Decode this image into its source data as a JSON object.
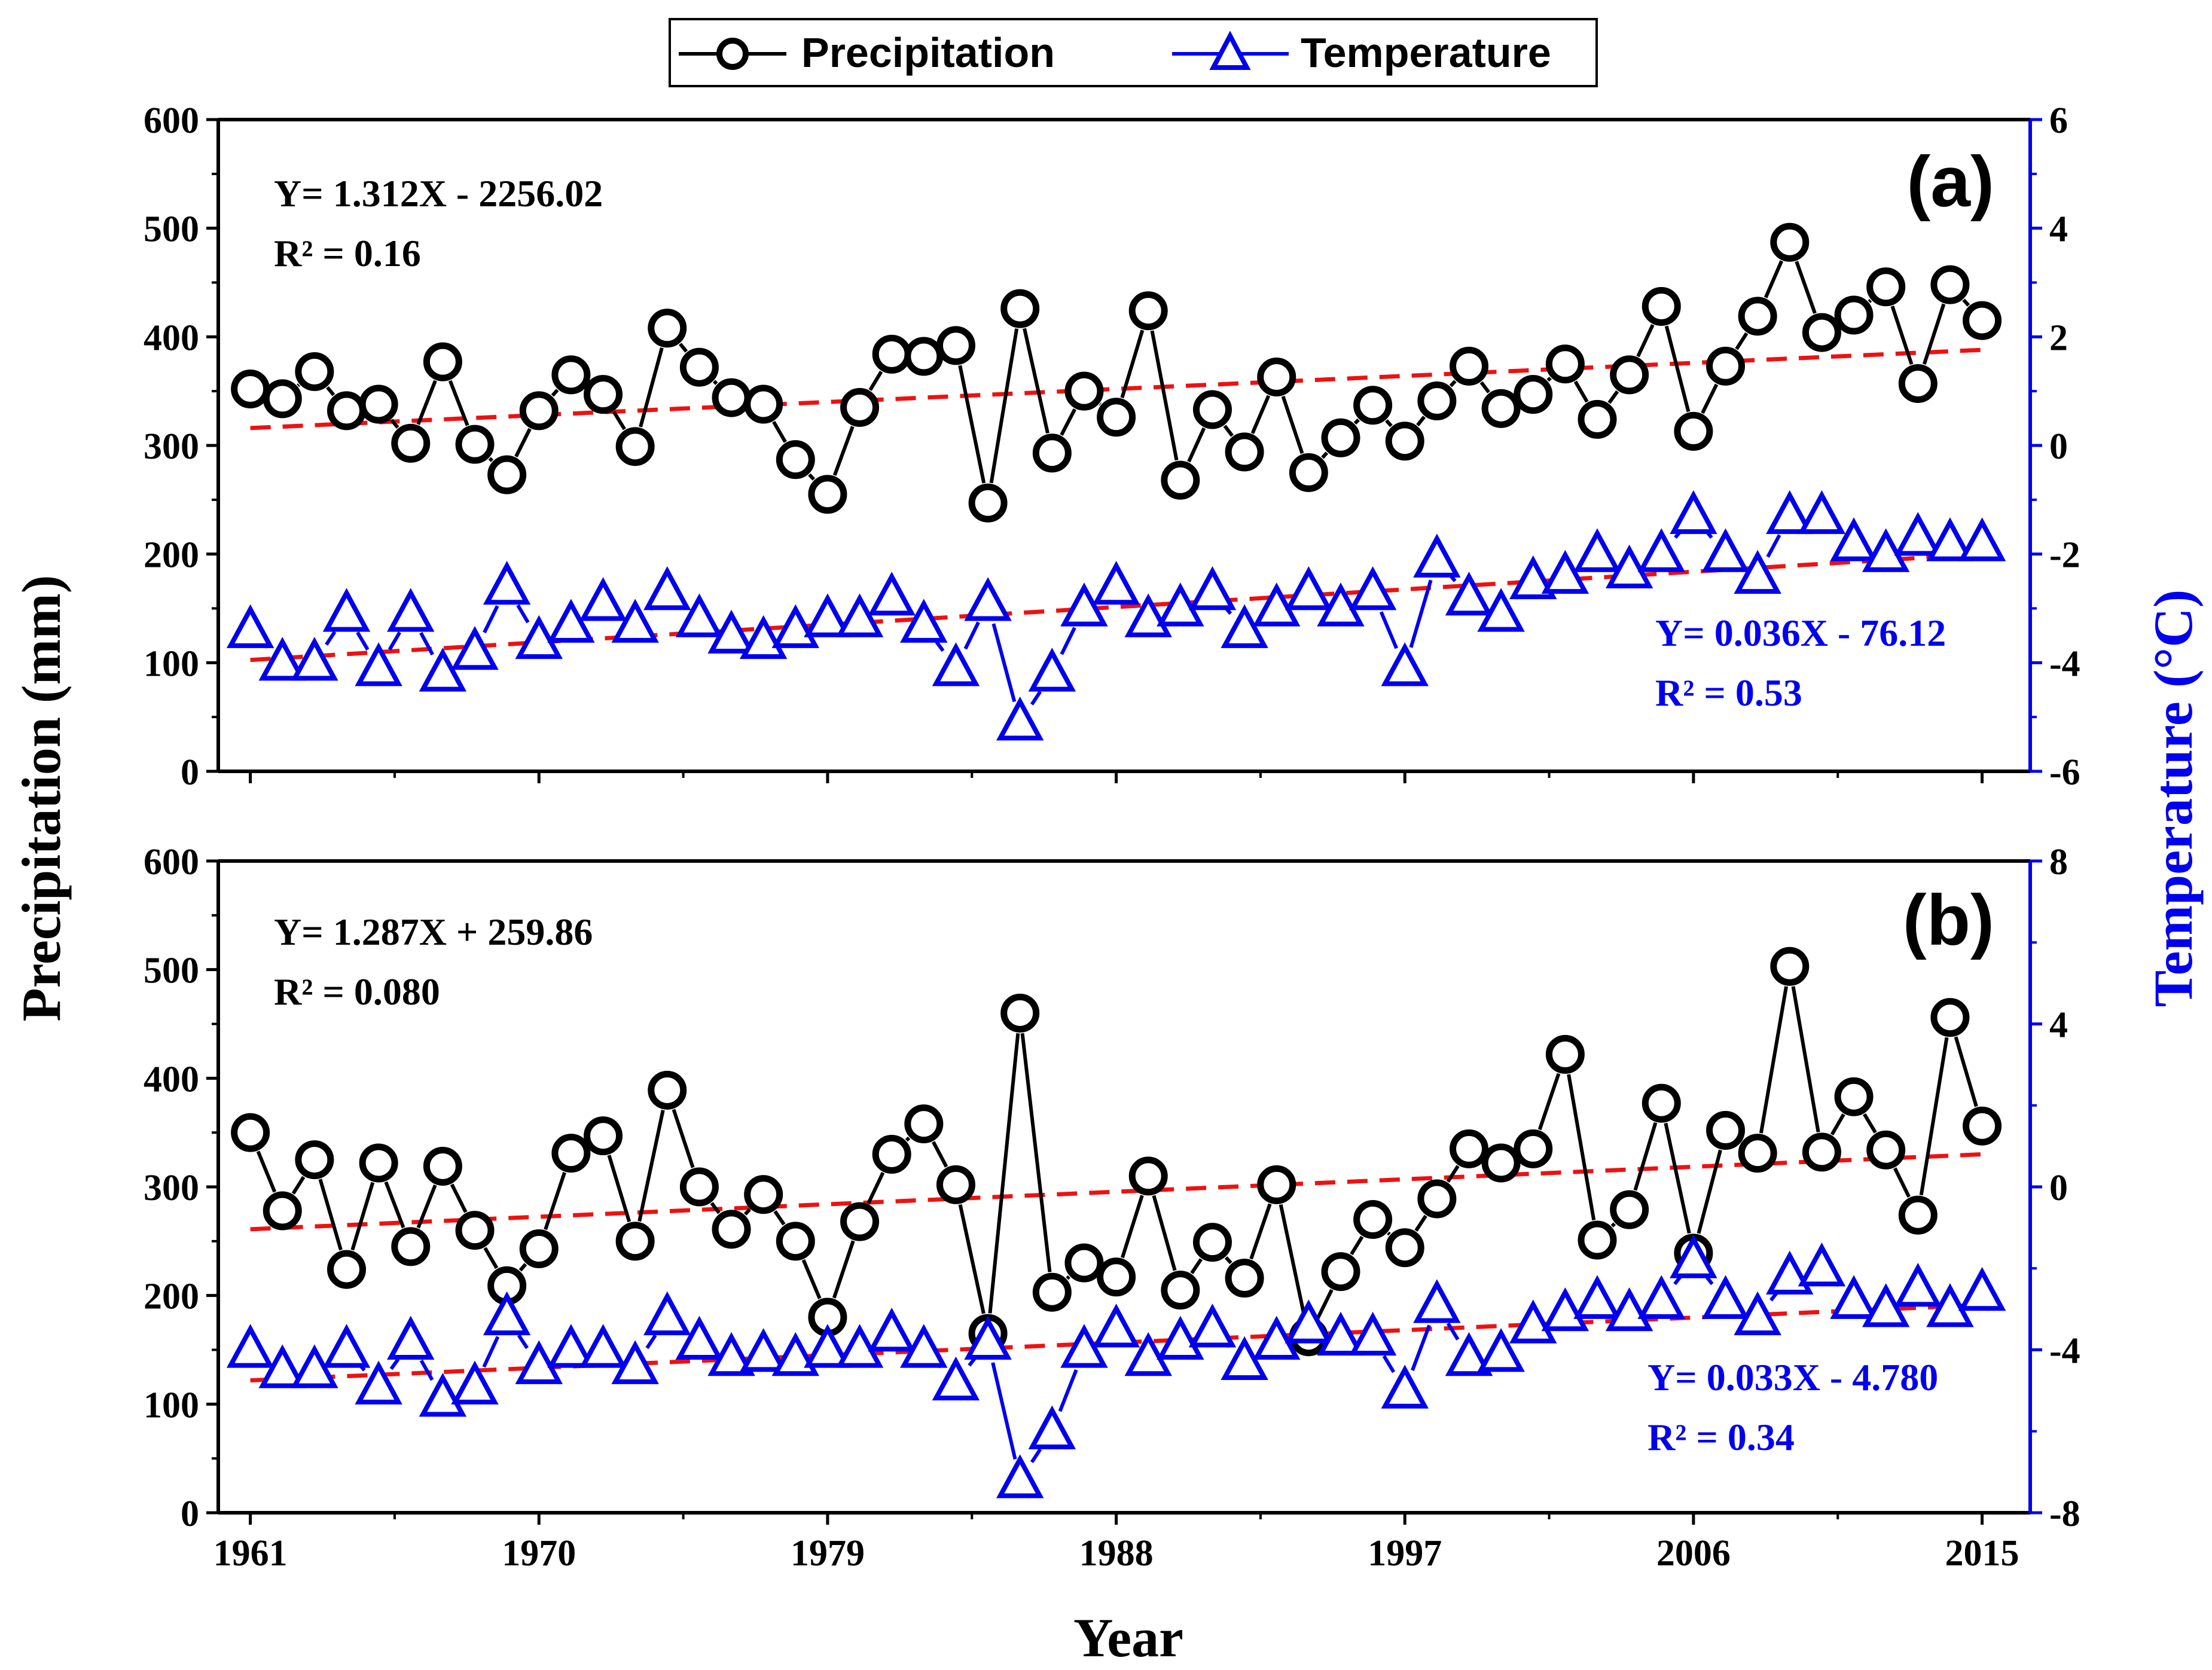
{
  "legend": {
    "precipitation": "Precipitation",
    "temperature": "Temperature"
  },
  "axes": {
    "xlabel": "Year",
    "ylabel_left": "Precipitation (mm)",
    "ylabel_right": "Temperature (°C)",
    "xticks": [
      "1961",
      "1970",
      "1979",
      "1988",
      "1997",
      "2006",
      "2015"
    ]
  },
  "colors": {
    "precipitation": "#000000",
    "temperature": "#0000ee",
    "trend": "#ee1111"
  },
  "chart_data": [
    {
      "type": "line",
      "panel_label": "(a)",
      "x": [
        1961,
        1962,
        1963,
        1964,
        1965,
        1966,
        1967,
        1968,
        1969,
        1970,
        1971,
        1972,
        1973,
        1974,
        1975,
        1976,
        1977,
        1978,
        1979,
        1980,
        1981,
        1982,
        1983,
        1984,
        1985,
        1986,
        1987,
        1988,
        1989,
        1990,
        1991,
        1992,
        1993,
        1994,
        1995,
        1996,
        1997,
        1998,
        1999,
        2000,
        2001,
        2002,
        2003,
        2004,
        2005,
        2006,
        2007,
        2008,
        2009,
        2010,
        2011,
        2012,
        2013,
        2014,
        2015
      ],
      "xlim": [
        1960,
        2016.5
      ],
      "ylim_left": [
        0,
        600
      ],
      "yticks_left": [
        0,
        100,
        200,
        300,
        400,
        500,
        600
      ],
      "ylim_right": [
        -6,
        6
      ],
      "yticks_right": [
        -6,
        -4,
        -2,
        0,
        2,
        4,
        6
      ],
      "series": [
        {
          "name": "Precipitation",
          "axis": "left",
          "marker": "circle",
          "values": [
            352,
            343,
            368,
            332,
            338,
            302,
            377,
            301,
            273,
            332,
            365,
            347,
            299,
            408,
            372,
            344,
            338,
            287,
            255,
            335,
            384,
            382,
            392,
            247,
            426,
            293,
            350,
            326,
            424,
            268,
            333,
            294,
            363,
            275,
            307,
            337,
            304,
            341,
            373,
            334,
            347,
            375,
            324,
            365,
            428,
            313,
            373,
            419,
            487,
            404,
            420,
            446,
            357,
            448,
            415
          ],
          "trend_equation": "Y= 1.312X - 2256.02",
          "trend_r2": "R² = 0.16",
          "trend_start": 316,
          "trend_end": 388
        },
        {
          "name": "Temperature",
          "axis": "right",
          "marker": "triangle",
          "values": [
            -3.4,
            -4.0,
            -4.0,
            -3.1,
            -4.1,
            -3.1,
            -4.2,
            -3.8,
            -2.6,
            -3.6,
            -3.3,
            -2.9,
            -3.3,
            -2.7,
            -3.2,
            -3.5,
            -3.6,
            -3.4,
            -3.2,
            -3.2,
            -2.8,
            -3.3,
            -4.1,
            -2.9,
            -5.1,
            -4.2,
            -3.0,
            -2.6,
            -3.2,
            -3.0,
            -2.7,
            -3.4,
            -3.0,
            -2.7,
            -3.0,
            -2.7,
            -4.1,
            -2.1,
            -2.8,
            -3.1,
            -2.5,
            -2.4,
            -2.0,
            -2.3,
            -2.0,
            -1.3,
            -2.0,
            -2.4,
            -1.3,
            -1.3,
            -1.8,
            -2.0,
            -1.7,
            -1.8,
            -1.8
          ],
          "trend_equation": "Y= 0.036X - 76.12",
          "trend_r2": "R² = 0.53",
          "trend_start": -3.95,
          "trend_end": -2.0
        }
      ]
    },
    {
      "type": "line",
      "panel_label": "(b)",
      "x": [
        1961,
        1962,
        1963,
        1964,
        1965,
        1966,
        1967,
        1968,
        1969,
        1970,
        1971,
        1972,
        1973,
        1974,
        1975,
        1976,
        1977,
        1978,
        1979,
        1980,
        1981,
        1982,
        1983,
        1984,
        1985,
        1986,
        1987,
        1988,
        1989,
        1990,
        1991,
        1992,
        1993,
        1994,
        1995,
        1996,
        1997,
        1998,
        1999,
        2000,
        2001,
        2002,
        2003,
        2004,
        2005,
        2006,
        2007,
        2008,
        2009,
        2010,
        2011,
        2012,
        2013,
        2014,
        2015
      ],
      "xlim": [
        1960,
        2016.5
      ],
      "ylim_left": [
        0,
        600
      ],
      "yticks_left": [
        0,
        100,
        200,
        300,
        400,
        500,
        600
      ],
      "ylim_right": [
        -8,
        8
      ],
      "yticks_right": [
        -8,
        -4,
        0,
        4,
        8
      ],
      "series": [
        {
          "name": "Precipitation",
          "axis": "left",
          "marker": "circle",
          "values": [
            350,
            278,
            325,
            224,
            322,
            245,
            319,
            260,
            209,
            243,
            331,
            347,
            250,
            389,
            300,
            261,
            293,
            250,
            180,
            268,
            330,
            358,
            302,
            165,
            460,
            203,
            230,
            217,
            310,
            205,
            249,
            216,
            302,
            162,
            222,
            270,
            244,
            289,
            335,
            322,
            335,
            422,
            251,
            279,
            377,
            239,
            352,
            331,
            503,
            332,
            383,
            334,
            274,
            456,
            356
          ],
          "trend_equation": "Y= 1.287X + 259.86",
          "trend_r2": "R² = 0.080",
          "trend_start": 261,
          "trend_end": 330
        },
        {
          "name": "Temperature",
          "axis": "right",
          "marker": "triangle",
          "values": [
            -4.0,
            -4.5,
            -4.5,
            -4.0,
            -4.9,
            -3.8,
            -5.2,
            -4.9,
            -3.2,
            -4.4,
            -4.0,
            -4.0,
            -4.4,
            -3.2,
            -3.8,
            -4.2,
            -4.1,
            -4.2,
            -4.0,
            -4.0,
            -3.6,
            -4.0,
            -4.8,
            -3.8,
            -7.2,
            -6.0,
            -4.0,
            -3.5,
            -4.2,
            -3.8,
            -3.5,
            -4.3,
            -3.8,
            -3.4,
            -3.7,
            -3.7,
            -5.0,
            -2.9,
            -4.2,
            -4.1,
            -3.4,
            -3.1,
            -2.8,
            -3.1,
            -2.8,
            -1.8,
            -2.8,
            -3.2,
            -2.2,
            -2.0,
            -2.8,
            -3.0,
            -2.5,
            -3.0,
            -2.6
          ],
          "trend_equation": "Y= 0.033X - 4.780",
          "trend_r2": "R² = 0.34",
          "trend_start": -4.75,
          "trend_end": -2.9
        }
      ]
    }
  ]
}
